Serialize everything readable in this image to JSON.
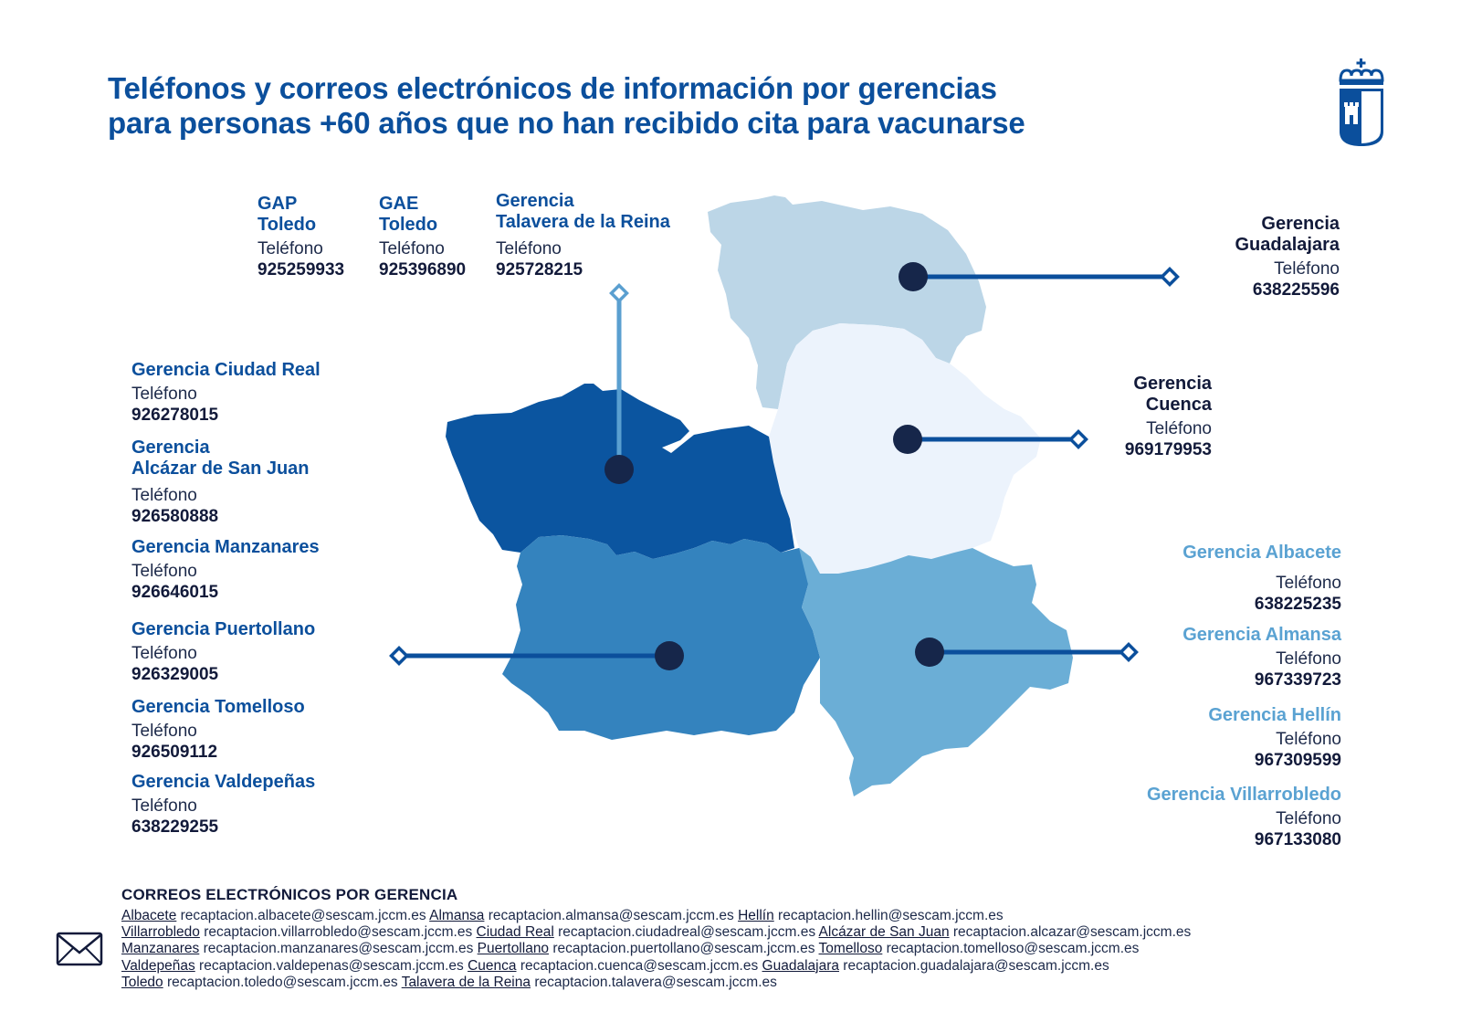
{
  "title": {
    "line1": "Teléfonos y correos electrónicos de información por gerencias",
    "line2": "para personas +60 años que no han recibido cita para vacunarse"
  },
  "colors": {
    "toledo": "#0b55a0",
    "ciudad_real": "#3483be",
    "guadalajara": "#bcd6e7",
    "cuenca": "#ecf3fc",
    "albacete": "#6baed6",
    "marker": "#16264a",
    "line_dark": "#0b4f9c",
    "line_light": "#5a9fd0"
  },
  "label_common": "Teléfono",
  "toledo_group": [
    {
      "name_l1": "GAP",
      "name_l2": "Toledo",
      "label": "Teléfono",
      "phone": "925259933"
    },
    {
      "name_l1": "GAE",
      "name_l2": "Toledo",
      "label": "Teléfono",
      "phone": "925396890"
    },
    {
      "name_l1": "Gerencia",
      "name_l2": "Talavera de la Reina",
      "label": "Teléfono",
      "phone": "925728215"
    }
  ],
  "guadalajara": {
    "name_l1": "Gerencia",
    "name_l2": "Guadalajara",
    "label": "Teléfono",
    "phone": "638225596"
  },
  "cuenca": {
    "name_l1": "Gerencia",
    "name_l2": "Cuenca",
    "label": "Teléfono",
    "phone": "969179953"
  },
  "ciudad_real_group": [
    {
      "name": "Gerencia Ciudad Real",
      "label": "Teléfono",
      "phone": "926278015"
    },
    {
      "name_l1": "Gerencia",
      "name_l2": "Alcázar de San Juan",
      "label": "Teléfono",
      "phone": "926580888"
    },
    {
      "name": "Gerencia Manzanares",
      "label": "Teléfono",
      "phone": "926646015"
    },
    {
      "name": "Gerencia Puertollano",
      "label": "Teléfono",
      "phone": "926329005"
    },
    {
      "name": "Gerencia Tomelloso",
      "label": "Teléfono",
      "phone": "926509112"
    },
    {
      "name": "Gerencia Valdepeñas",
      "label": "Teléfono",
      "phone": "638229255"
    }
  ],
  "albacete_group": [
    {
      "name": "Gerencia Albacete",
      "label": "Teléfono",
      "phone": "638225235"
    },
    {
      "name": "Gerencia Almansa",
      "label": "Teléfono",
      "phone": "967339723"
    },
    {
      "name": "Gerencia Hellín",
      "label": "Teléfono",
      "phone": "967309599"
    },
    {
      "name": "Gerencia Villarrobledo",
      "label": "Teléfono",
      "phone": "967133080"
    }
  ],
  "emails": {
    "title": "CORREOS ELECTRÓNICOS POR GERENCIA",
    "items": [
      {
        "area": "Albacete",
        "email": "recaptacion.albacete@sescam.jccm.es"
      },
      {
        "area": "Almansa",
        "email": "recaptacion.almansa@sescam.jccm.es"
      },
      {
        "area": "Hellín",
        "email": "recaptacion.hellin@sescam.jccm.es"
      },
      {
        "area": "Villarrobledo",
        "email": "recaptacion.villarrobledo@sescam.jccm.es"
      },
      {
        "area": "Ciudad Real",
        "email": "recaptacion.ciudadreal@sescam.jccm.es"
      },
      {
        "area": "Alcázar de San Juan",
        "email": "recaptacion.alcazar@sescam.jccm.es"
      },
      {
        "area": "Manzanares",
        "email": "recaptacion.manzanares@sescam.jccm.es"
      },
      {
        "area": "Puertollano",
        "email": "recaptacion.puertollano@sescam.jccm.es"
      },
      {
        "area": "Tomelloso",
        "email": "recaptacion.tomelloso@sescam.jccm.es"
      },
      {
        "area": "Valdepeñas",
        "email": "recaptacion.valdepenas@sescam.jccm.es"
      },
      {
        "area": "Cuenca",
        "email": "recaptacion.cuenca@sescam.jccm.es"
      },
      {
        "area": "Guadalajara",
        "email": "recaptacion.guadalajara@sescam.jccm.es"
      },
      {
        "area": "Toledo",
        "email": "recaptacion.toledo@sescam.jccm.es"
      },
      {
        "area": "Talavera de la Reina",
        "email": "recaptacion.talavera@sescam.jccm.es"
      }
    ]
  },
  "icons": {
    "logo": "jccm-crest-icon",
    "mail": "envelope-icon"
  }
}
